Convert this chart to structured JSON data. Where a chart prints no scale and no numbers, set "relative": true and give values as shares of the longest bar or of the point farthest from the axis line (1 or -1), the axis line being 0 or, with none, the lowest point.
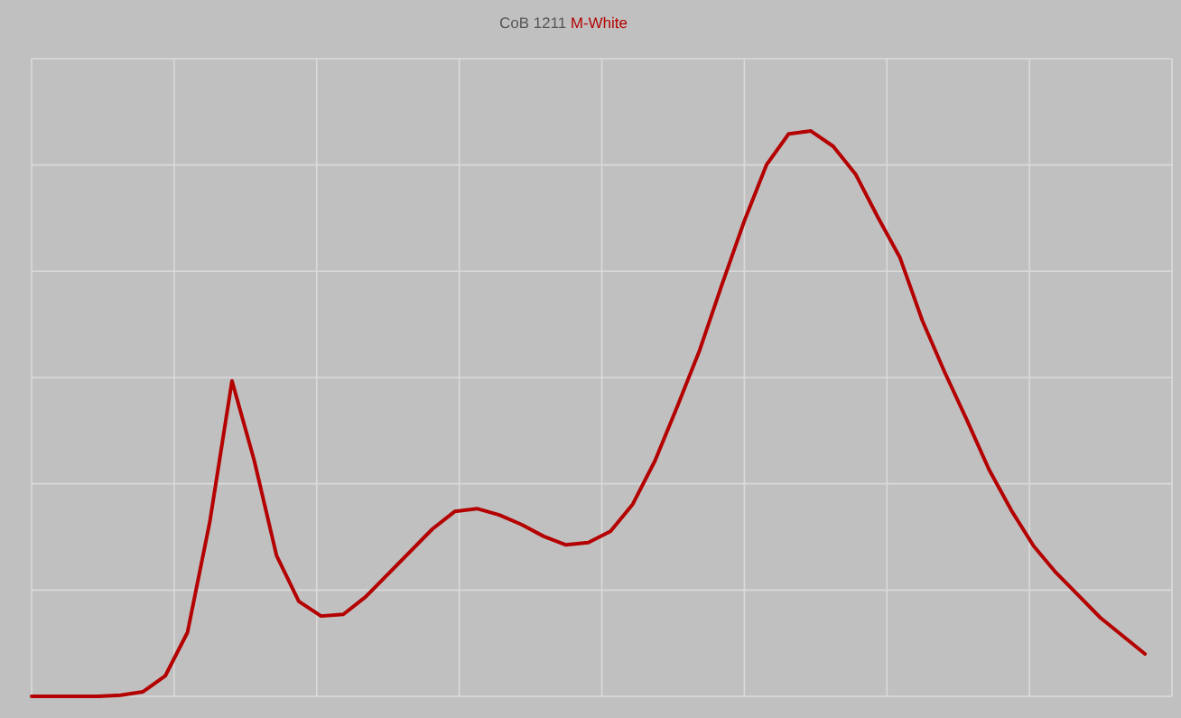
{
  "chart_data": {
    "type": "line",
    "title": "CoB 1211",
    "relative": true,
    "grid": true,
    "categories": [
      null,
      null,
      null,
      null,
      null,
      null,
      null,
      null,
      null,
      null,
      null,
      null,
      null,
      null,
      null,
      null,
      null,
      null,
      null,
      null,
      null,
      null,
      null,
      null,
      null,
      null,
      null,
      null,
      null,
      null,
      null,
      null,
      null,
      null,
      null,
      null,
      null,
      null,
      null,
      null,
      null,
      null,
      null,
      null,
      null,
      null,
      null,
      null,
      null,
      null,
      null
    ],
    "series": [
      {
        "name": "M-White",
        "color": "#b40000",
        "values": [
          0,
          0,
          0,
          0,
          0.002,
          0.008,
          0.036,
          0.113,
          0.308,
          0.558,
          0.417,
          0.249,
          0.168,
          0.142,
          0.145,
          0.176,
          0.216,
          0.256,
          0.296,
          0.327,
          0.332,
          0.321,
          0.304,
          0.283,
          0.268,
          0.272,
          0.292,
          0.34,
          0.417,
          0.513,
          0.612,
          0.728,
          0.84,
          0.94,
          0.995,
          1,
          0.973,
          0.924,
          0.848,
          0.776,
          0.665,
          0.574,
          0.489,
          0.401,
          0.329,
          0.266,
          0.219,
          0.179,
          0.139,
          0.107,
          0.075
        ]
      }
    ]
  }
}
